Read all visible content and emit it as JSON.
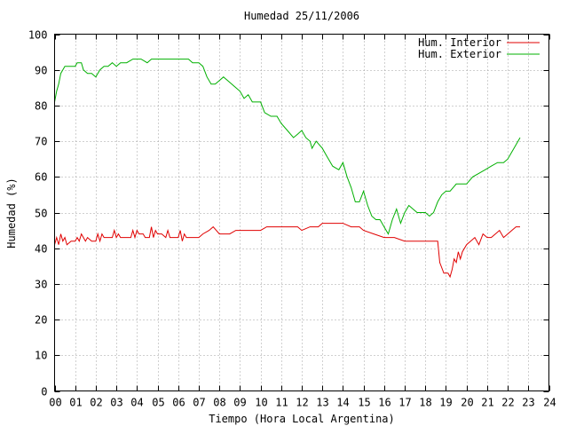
{
  "chart_data": {
    "type": "line",
    "title": "Humedad 25/11/2006",
    "xlabel": "Tiempo (Hora Local Argentina)",
    "ylabel": "Humedad (%)",
    "xlim": [
      0,
      24
    ],
    "ylim": [
      0,
      100
    ],
    "x_ticks": [
      "00",
      "01",
      "02",
      "03",
      "04",
      "05",
      "06",
      "07",
      "08",
      "09",
      "10",
      "11",
      "12",
      "13",
      "14",
      "15",
      "16",
      "17",
      "18",
      "19",
      "20",
      "21",
      "22",
      "23",
      "24"
    ],
    "y_ticks": [
      "0",
      "10",
      "20",
      "30",
      "40",
      "50",
      "60",
      "70",
      "80",
      "90",
      "100"
    ],
    "grid": true,
    "legend_position": "top-right",
    "series": [
      {
        "name": "Hum. Interior",
        "color": "#e00000",
        "points": [
          [
            0.0,
            41
          ],
          [
            0.1,
            43
          ],
          [
            0.2,
            41
          ],
          [
            0.3,
            44
          ],
          [
            0.4,
            42
          ],
          [
            0.5,
            43
          ],
          [
            0.6,
            41
          ],
          [
            0.8,
            42
          ],
          [
            1.0,
            42
          ],
          [
            1.1,
            43
          ],
          [
            1.2,
            42
          ],
          [
            1.3,
            44
          ],
          [
            1.4,
            43
          ],
          [
            1.5,
            42
          ],
          [
            1.6,
            43
          ],
          [
            1.8,
            42
          ],
          [
            2.0,
            42
          ],
          [
            2.1,
            44
          ],
          [
            2.2,
            42
          ],
          [
            2.3,
            44
          ],
          [
            2.4,
            43
          ],
          [
            2.5,
            43
          ],
          [
            2.8,
            43
          ],
          [
            2.9,
            45
          ],
          [
            3.0,
            43
          ],
          [
            3.1,
            44
          ],
          [
            3.2,
            43
          ],
          [
            3.4,
            43
          ],
          [
            3.7,
            43
          ],
          [
            3.8,
            45
          ],
          [
            3.9,
            43
          ],
          [
            4.0,
            45
          ],
          [
            4.1,
            44
          ],
          [
            4.3,
            44
          ],
          [
            4.4,
            43
          ],
          [
            4.6,
            43
          ],
          [
            4.7,
            46
          ],
          [
            4.8,
            43
          ],
          [
            4.9,
            45
          ],
          [
            5.0,
            44
          ],
          [
            5.2,
            44
          ],
          [
            5.4,
            43
          ],
          [
            5.5,
            45
          ],
          [
            5.6,
            43
          ],
          [
            5.8,
            43
          ],
          [
            6.0,
            43
          ],
          [
            6.1,
            45
          ],
          [
            6.2,
            42
          ],
          [
            6.3,
            44
          ],
          [
            6.4,
            43
          ],
          [
            6.6,
            43
          ],
          [
            7.0,
            43
          ],
          [
            7.2,
            44
          ],
          [
            7.5,
            45
          ],
          [
            7.7,
            46
          ],
          [
            8.0,
            44
          ],
          [
            8.5,
            44
          ],
          [
            8.8,
            45
          ],
          [
            9.2,
            45
          ],
          [
            9.6,
            45
          ],
          [
            10.0,
            45
          ],
          [
            10.3,
            46
          ],
          [
            11.0,
            46
          ],
          [
            11.8,
            46
          ],
          [
            12.0,
            45
          ],
          [
            12.4,
            46
          ],
          [
            12.8,
            46
          ],
          [
            13.0,
            47
          ],
          [
            13.5,
            47
          ],
          [
            14.0,
            47
          ],
          [
            14.4,
            46
          ],
          [
            14.8,
            46
          ],
          [
            15.0,
            45
          ],
          [
            15.5,
            44
          ],
          [
            16.0,
            43
          ],
          [
            16.5,
            43
          ],
          [
            17.0,
            42
          ],
          [
            17.5,
            42
          ],
          [
            18.0,
            42
          ],
          [
            18.6,
            42
          ],
          [
            18.7,
            36
          ],
          [
            18.9,
            33
          ],
          [
            19.1,
            33
          ],
          [
            19.2,
            32
          ],
          [
            19.3,
            34
          ],
          [
            19.4,
            37
          ],
          [
            19.5,
            36
          ],
          [
            19.6,
            39
          ],
          [
            19.7,
            37
          ],
          [
            19.8,
            39
          ],
          [
            20.0,
            41
          ],
          [
            20.2,
            42
          ],
          [
            20.4,
            43
          ],
          [
            20.6,
            41
          ],
          [
            20.8,
            44
          ],
          [
            21.0,
            43
          ],
          [
            21.2,
            43
          ],
          [
            21.4,
            44
          ],
          [
            21.6,
            45
          ],
          [
            21.8,
            43
          ],
          [
            22.0,
            44
          ],
          [
            22.2,
            45
          ],
          [
            22.4,
            46
          ],
          [
            22.6,
            46
          ]
        ]
      },
      {
        "name": "Hum. Exterior",
        "color": "#00b000",
        "points": [
          [
            0.0,
            81
          ],
          [
            0.1,
            84
          ],
          [
            0.2,
            86
          ],
          [
            0.3,
            89
          ],
          [
            0.5,
            91
          ],
          [
            0.8,
            91
          ],
          [
            1.0,
            91
          ],
          [
            1.1,
            92
          ],
          [
            1.3,
            92
          ],
          [
            1.4,
            90
          ],
          [
            1.6,
            89
          ],
          [
            1.8,
            89
          ],
          [
            2.0,
            88
          ],
          [
            2.2,
            90
          ],
          [
            2.4,
            91
          ],
          [
            2.6,
            91
          ],
          [
            2.8,
            92
          ],
          [
            3.0,
            91
          ],
          [
            3.2,
            92
          ],
          [
            3.5,
            92
          ],
          [
            3.8,
            93
          ],
          [
            4.2,
            93
          ],
          [
            4.5,
            92
          ],
          [
            4.7,
            93
          ],
          [
            5.0,
            93
          ],
          [
            6.0,
            93
          ],
          [
            6.5,
            93
          ],
          [
            6.7,
            92
          ],
          [
            7.0,
            92
          ],
          [
            7.2,
            91
          ],
          [
            7.4,
            88
          ],
          [
            7.6,
            86
          ],
          [
            7.8,
            86
          ],
          [
            8.0,
            87
          ],
          [
            8.2,
            88
          ],
          [
            8.4,
            87
          ],
          [
            8.6,
            86
          ],
          [
            8.8,
            85
          ],
          [
            9.0,
            84
          ],
          [
            9.2,
            82
          ],
          [
            9.4,
            83
          ],
          [
            9.6,
            81
          ],
          [
            10.0,
            81
          ],
          [
            10.2,
            78
          ],
          [
            10.5,
            77
          ],
          [
            10.8,
            77
          ],
          [
            11.0,
            75
          ],
          [
            11.3,
            73
          ],
          [
            11.6,
            71
          ],
          [
            11.8,
            72
          ],
          [
            12.0,
            73
          ],
          [
            12.2,
            71
          ],
          [
            12.4,
            70
          ],
          [
            12.5,
            68
          ],
          [
            12.7,
            70
          ],
          [
            13.0,
            68
          ],
          [
            13.2,
            66
          ],
          [
            13.5,
            63
          ],
          [
            13.8,
            62
          ],
          [
            14.0,
            64
          ],
          [
            14.2,
            60
          ],
          [
            14.4,
            57
          ],
          [
            14.6,
            53
          ],
          [
            14.8,
            53
          ],
          [
            15.0,
            56
          ],
          [
            15.2,
            52
          ],
          [
            15.4,
            49
          ],
          [
            15.6,
            48
          ],
          [
            15.8,
            48
          ],
          [
            16.0,
            46
          ],
          [
            16.2,
            44
          ],
          [
            16.4,
            48
          ],
          [
            16.6,
            51
          ],
          [
            16.8,
            47
          ],
          [
            17.0,
            50
          ],
          [
            17.2,
            52
          ],
          [
            17.4,
            51
          ],
          [
            17.6,
            50
          ],
          [
            18.0,
            50
          ],
          [
            18.2,
            49
          ],
          [
            18.4,
            50
          ],
          [
            18.6,
            53
          ],
          [
            18.8,
            55
          ],
          [
            19.0,
            56
          ],
          [
            19.2,
            56
          ],
          [
            19.5,
            58
          ],
          [
            19.8,
            58
          ],
          [
            20.0,
            58
          ],
          [
            20.3,
            60
          ],
          [
            20.6,
            61
          ],
          [
            20.9,
            62
          ],
          [
            21.2,
            63
          ],
          [
            21.5,
            64
          ],
          [
            21.8,
            64
          ],
          [
            22.0,
            65
          ],
          [
            22.2,
            67
          ],
          [
            22.4,
            69
          ],
          [
            22.6,
            71
          ]
        ]
      }
    ]
  }
}
